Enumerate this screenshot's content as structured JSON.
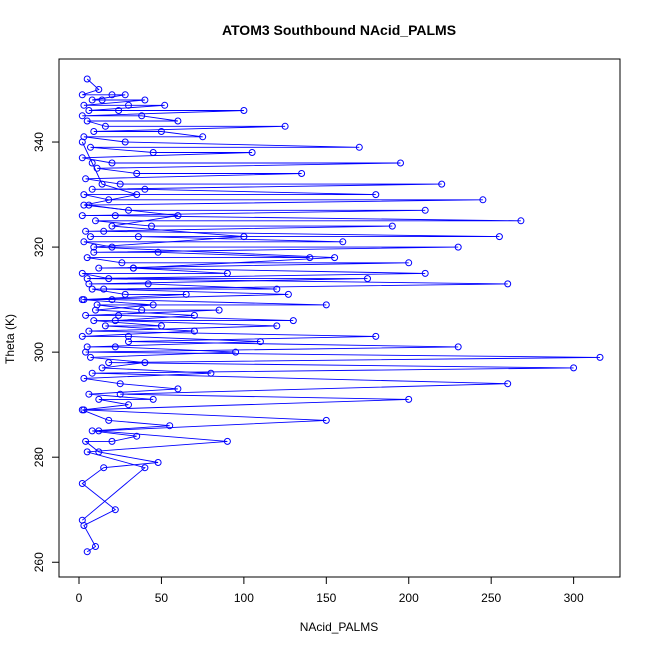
{
  "chart_data": {
    "type": "line",
    "title": "ATOM3 Southbound NAcid_PALMS",
    "xlabel": "NAcid_PALMS",
    "ylabel": "Theta (K)",
    "xlim": [
      0,
      316
    ],
    "ylim": [
      261,
      352
    ],
    "xticks": [
      0,
      50,
      100,
      150,
      200,
      250,
      300
    ],
    "yticks": [
      260,
      280,
      300,
      320,
      340
    ],
    "grid": false,
    "legend": "none",
    "marker": "open-circle",
    "color": "#0000ff",
    "series": [
      {
        "x": [
          5,
          10,
          3,
          22,
          2,
          15,
          48,
          12,
          4,
          20,
          35,
          8,
          55,
          18,
          2,
          30,
          12,
          45,
          6,
          60,
          25,
          3,
          80,
          14,
          40,
          7,
          95,
          22,
          5,
          110,
          30,
          2,
          70,
          16,
          50,
          9,
          130,
          24,
          4,
          85,
          38,
          11,
          150,
          20,
          3,
          65,
          28,
          8,
          120,
          42,
          6,
          175,
          18,
          2,
          90,
          33,
          12,
          200,
          26,
          5,
          140,
          48,
          9,
          230,
          20,
          3,
          160,
          36,
          7,
          255,
          15,
          4,
          190,
          44,
          10,
          268,
          22,
          2,
          210,
          30,
          6,
          245,
          18,
          3,
          180,
          40,
          8,
          220,
          25,
          4,
          135,
          35,
          11,
          195,
          20,
          2,
          105,
          45,
          7,
          170,
          28,
          3,
          75,
          50,
          9,
          125,
          16,
          5,
          60,
          38,
          2,
          100,
          24,
          6,
          52,
          30,
          3,
          40,
          14,
          8,
          28,
          20,
          2,
          12,
          5
        ],
        "y": [
          262,
          263,
          267,
          270,
          275,
          278,
          279,
          281,
          283,
          283,
          284,
          285,
          286,
          287,
          289,
          290,
          291,
          291,
          292,
          293,
          294,
          295,
          296,
          297,
          298,
          299,
          300,
          301,
          301,
          302,
          303,
          303,
          304,
          305,
          305,
          306,
          306,
          307,
          307,
          308,
          308,
          309,
          309,
          310,
          310,
          311,
          311,
          312,
          312,
          313,
          313,
          314,
          314,
          315,
          315,
          316,
          316,
          317,
          317,
          318,
          318,
          319,
          319,
          320,
          320,
          321,
          321,
          322,
          322,
          322,
          323,
          323,
          324,
          324,
          325,
          325,
          326,
          326,
          327,
          327,
          328,
          329,
          329,
          330,
          330,
          331,
          331,
          332,
          332,
          333,
          334,
          334,
          335,
          336,
          336,
          337,
          338,
          338,
          339,
          339,
          340,
          341,
          341,
          342,
          342,
          343,
          343,
          344,
          344,
          345,
          345,
          346,
          346,
          346,
          347,
          347,
          347,
          348,
          348,
          348,
          349,
          349,
          349,
          350,
          352
        ]
      },
      {
        "x": [
          2,
          40,
          5,
          90,
          12,
          150,
          3,
          200,
          25,
          260,
          8,
          300,
          18,
          316,
          4,
          230,
          30,
          180,
          6,
          120,
          22,
          70,
          10,
          45,
          2,
          127,
          15,
          260,
          5,
          210,
          33,
          155,
          9,
          100,
          20,
          60,
          3,
          35,
          14,
          8,
          2
        ],
        "y": [
          268,
          278,
          281,
          283,
          285,
          287,
          289,
          291,
          292,
          294,
          296,
          297,
          298,
          299,
          300,
          301,
          302,
          303,
          304,
          305,
          306,
          307,
          308,
          309,
          310,
          311,
          312,
          313,
          314,
          315,
          316,
          318,
          320,
          322,
          324,
          326,
          328,
          330,
          332,
          336,
          340
        ]
      }
    ]
  }
}
